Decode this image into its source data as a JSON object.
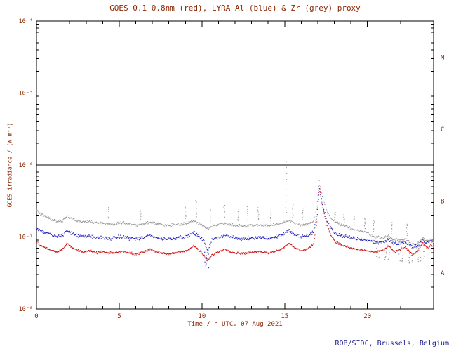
{
  "figure": {
    "credit": "ROB/SIDC, Brussels, Belgium",
    "colors": {
      "text": "#8b2500",
      "credit": "#1a1a8c",
      "frame": "#000000",
      "boundary_line": "#000000",
      "red_series": "#cc1111",
      "blue_series": "#2222bb",
      "grey_series": "#9a9a9a"
    }
  },
  "chart_data": {
    "type": "scatter",
    "title": "GOES 0.1−0.8nm (red), LYRA Al (blue) & Zr (grey) proxy",
    "xlabel": "Time / h UTC, 07 Aug 2021",
    "ylabel": "GOES irradiance / (W m⁻²)",
    "xlim": [
      0,
      24
    ],
    "ylog10_range": [
      -8,
      -4
    ],
    "x_major_ticks": [
      0,
      5,
      10,
      15,
      20
    ],
    "x_minor_step": 1,
    "y_decade_labels": [
      "10⁻⁸",
      "10⁻⁷",
      "10⁻⁶",
      "10⁻⁵",
      "10⁻⁴"
    ],
    "class_boundary_lines_log10": [
      -7,
      -6,
      -5
    ],
    "flare_class_labels": [
      {
        "label": "A",
        "band": [
          -8,
          -7
        ]
      },
      {
        "label": "B",
        "band": [
          -7,
          -6
        ]
      },
      {
        "label": "C",
        "band": [
          -6,
          -5
        ]
      },
      {
        "label": "M",
        "band": [
          -5,
          -4
        ]
      }
    ],
    "grid": false,
    "legend": "encoded in title (red/blue/grey)",
    "series": [
      {
        "name": "GOES 0.1-0.8nm",
        "color": "#cc1111",
        "keypoints": [
          [
            0,
            8.5e-08
          ],
          [
            0.3,
            7.5e-08
          ],
          [
            0.7,
            6.8e-08
          ],
          [
            1.2,
            6.2e-08
          ],
          [
            1.6,
            6.8e-08
          ],
          [
            1.85,
            8.2e-08
          ],
          [
            2.1,
            7.2e-08
          ],
          [
            2.4,
            6.6e-08
          ],
          [
            2.8,
            6.2e-08
          ],
          [
            3.2,
            6.4e-08
          ],
          [
            3.6,
            6e-08
          ],
          [
            4.0,
            6.2e-08
          ],
          [
            4.4,
            5.9e-08
          ],
          [
            4.8,
            6.1e-08
          ],
          [
            5.2,
            6.3e-08
          ],
          [
            5.6,
            6e-08
          ],
          [
            6.0,
            5.8e-08
          ],
          [
            6.4,
            6.1e-08
          ],
          [
            6.9,
            6.8e-08
          ],
          [
            7.2,
            6.2e-08
          ],
          [
            7.6,
            5.9e-08
          ],
          [
            8.0,
            5.8e-08
          ],
          [
            8.4,
            6e-08
          ],
          [
            8.8,
            6.3e-08
          ],
          [
            9.2,
            6.6e-08
          ],
          [
            9.5,
            7.6e-08
          ],
          [
            9.8,
            6.6e-08
          ],
          [
            10.1,
            5.6e-08
          ],
          [
            10.35,
            4.6e-08
          ],
          [
            10.6,
            5.6e-08
          ],
          [
            11.0,
            6.2e-08
          ],
          [
            11.4,
            6.8e-08
          ],
          [
            11.7,
            6.3e-08
          ],
          [
            12.0,
            6e-08
          ],
          [
            12.5,
            5.9e-08
          ],
          [
            13.0,
            6.1e-08
          ],
          [
            13.5,
            6.3e-08
          ],
          [
            14.0,
            6e-08
          ],
          [
            14.5,
            6.4e-08
          ],
          [
            14.9,
            7e-08
          ],
          [
            15.25,
            8.2e-08
          ],
          [
            15.6,
            7e-08
          ],
          [
            16.0,
            6.5e-08
          ],
          [
            16.4,
            6.8e-08
          ],
          [
            16.75,
            8e-08
          ],
          [
            16.95,
            1.6e-07
          ],
          [
            17.1,
            5.2e-07
          ],
          [
            17.3,
            2.6e-07
          ],
          [
            17.55,
            1.5e-07
          ],
          [
            17.8,
            1.05e-07
          ],
          [
            18.1,
            8.5e-08
          ],
          [
            18.5,
            7.6e-08
          ],
          [
            19.0,
            7e-08
          ],
          [
            19.5,
            6.6e-08
          ],
          [
            20.0,
            6.4e-08
          ],
          [
            20.5,
            6.1e-08
          ],
          [
            21.0,
            6.6e-08
          ],
          [
            21.3,
            7.6e-08
          ],
          [
            21.6,
            6.2e-08
          ],
          [
            22.0,
            6.6e-08
          ],
          [
            22.3,
            7.2e-08
          ],
          [
            22.7,
            5.7e-08
          ],
          [
            23.0,
            6.2e-08
          ],
          [
            23.35,
            8.2e-08
          ],
          [
            23.6,
            7e-08
          ],
          [
            23.85,
            7.8e-08
          ],
          [
            24,
            7.2e-08
          ]
        ]
      },
      {
        "name": "LYRA Al proxy",
        "color": "#2222bb",
        "keypoints": [
          [
            0,
            1.35e-07
          ],
          [
            0.3,
            1.2e-07
          ],
          [
            0.7,
            1.1e-07
          ],
          [
            1.2,
            1e-07
          ],
          [
            1.6,
            1.08e-07
          ],
          [
            1.85,
            1.25e-07
          ],
          [
            2.1,
            1.12e-07
          ],
          [
            2.4,
            1.05e-07
          ],
          [
            2.8,
            1e-07
          ],
          [
            3.2,
            1.02e-07
          ],
          [
            3.6,
            9.7e-08
          ],
          [
            4.0,
            9.9e-08
          ],
          [
            4.4,
            9.5e-08
          ],
          [
            4.8,
            9.8e-08
          ],
          [
            5.2,
            1e-07
          ],
          [
            5.6,
            9.7e-08
          ],
          [
            6.0,
            9.4e-08
          ],
          [
            6.4,
            9.7e-08
          ],
          [
            6.9,
            1.05e-07
          ],
          [
            7.2,
            9.9e-08
          ],
          [
            7.6,
            9.5e-08
          ],
          [
            8.0,
            9.4e-08
          ],
          [
            8.4,
            9.6e-08
          ],
          [
            8.8,
            1e-07
          ],
          [
            9.2,
            1.04e-07
          ],
          [
            9.5,
            1.15e-07
          ],
          [
            9.8,
            1.02e-07
          ],
          [
            10.1,
            8.8e-08
          ],
          [
            10.35,
            6.5e-08
          ],
          [
            10.6,
            9e-08
          ],
          [
            11.0,
            9.9e-08
          ],
          [
            11.4,
            1.06e-07
          ],
          [
            11.7,
            1e-07
          ],
          [
            12.0,
            9.6e-08
          ],
          [
            12.5,
            9.4e-08
          ],
          [
            13.0,
            9.7e-08
          ],
          [
            13.5,
            9.9e-08
          ],
          [
            14.0,
            9.6e-08
          ],
          [
            14.5,
            1e-07
          ],
          [
            14.9,
            1.08e-07
          ],
          [
            15.25,
            1.22e-07
          ],
          [
            15.6,
            1.08e-07
          ],
          [
            16.0,
            1e-07
          ],
          [
            16.4,
            1.04e-07
          ],
          [
            16.75,
            1.18e-07
          ],
          [
            16.95,
            2e-07
          ],
          [
            17.1,
            4.6e-07
          ],
          [
            17.3,
            2.6e-07
          ],
          [
            17.55,
            1.7e-07
          ],
          [
            17.8,
            1.3e-07
          ],
          [
            18.1,
            1.12e-07
          ],
          [
            18.5,
            1.03e-07
          ],
          [
            19.0,
            9.7e-08
          ],
          [
            19.5,
            9.3e-08
          ],
          [
            20.0,
            9e-08
          ],
          [
            20.5,
            8.4e-08
          ],
          [
            21.0,
            8.6e-08
          ],
          [
            21.3,
            9.4e-08
          ],
          [
            21.6,
            8e-08
          ],
          [
            22.0,
            8.2e-08
          ],
          [
            22.3,
            8.6e-08
          ],
          [
            22.7,
            7.2e-08
          ],
          [
            23.0,
            7.4e-08
          ],
          [
            23.35,
            9.2e-08
          ],
          [
            23.6,
            8.2e-08
          ],
          [
            23.85,
            8.8e-08
          ],
          [
            24,
            8.3e-08
          ]
        ]
      },
      {
        "name": "LYRA Zr proxy",
        "color": "#9a9a9a",
        "keypoints": [
          [
            0,
            2.3e-07
          ],
          [
            0.3,
            2.05e-07
          ],
          [
            0.7,
            1.85e-07
          ],
          [
            1.2,
            1.65e-07
          ],
          [
            1.6,
            1.7e-07
          ],
          [
            1.85,
            1.95e-07
          ],
          [
            2.1,
            1.8e-07
          ],
          [
            2.4,
            1.7e-07
          ],
          [
            2.8,
            1.62e-07
          ],
          [
            3.2,
            1.65e-07
          ],
          [
            3.6,
            1.55e-07
          ],
          [
            4.0,
            1.57e-07
          ],
          [
            4.4,
            1.5e-07
          ],
          [
            4.8,
            1.54e-07
          ],
          [
            5.2,
            1.58e-07
          ],
          [
            5.6,
            1.52e-07
          ],
          [
            6.0,
            1.47e-07
          ],
          [
            6.4,
            1.5e-07
          ],
          [
            6.9,
            1.6e-07
          ],
          [
            7.2,
            1.52e-07
          ],
          [
            7.6,
            1.47e-07
          ],
          [
            8.0,
            1.44e-07
          ],
          [
            8.4,
            1.47e-07
          ],
          [
            8.8,
            1.52e-07
          ],
          [
            9.2,
            1.56e-07
          ],
          [
            9.5,
            1.68e-07
          ],
          [
            9.8,
            1.54e-07
          ],
          [
            10.1,
            1.42e-07
          ],
          [
            10.35,
            1.3e-07
          ],
          [
            10.6,
            1.42e-07
          ],
          [
            11.0,
            1.5e-07
          ],
          [
            11.4,
            1.57e-07
          ],
          [
            11.7,
            1.5e-07
          ],
          [
            12.0,
            1.45e-07
          ],
          [
            12.5,
            1.42e-07
          ],
          [
            13.0,
            1.45e-07
          ],
          [
            13.5,
            1.47e-07
          ],
          [
            14.0,
            1.43e-07
          ],
          [
            14.5,
            1.48e-07
          ],
          [
            14.9,
            1.56e-07
          ],
          [
            15.25,
            1.7e-07
          ],
          [
            15.6,
            1.55e-07
          ],
          [
            16.0,
            1.46e-07
          ],
          [
            16.4,
            1.5e-07
          ],
          [
            16.75,
            1.65e-07
          ],
          [
            16.95,
            2.6e-07
          ],
          [
            17.1,
            6e-07
          ],
          [
            17.3,
            3.4e-07
          ],
          [
            17.55,
            2.3e-07
          ],
          [
            17.8,
            1.8e-07
          ],
          [
            18.1,
            1.58e-07
          ],
          [
            18.5,
            1.44e-07
          ],
          [
            19.0,
            1.32e-07
          ],
          [
            19.5,
            1.22e-07
          ],
          [
            20.0,
            1.14e-07
          ],
          [
            20.5,
            1e-07
          ],
          [
            21.0,
            9.7e-08
          ],
          [
            21.3,
            1.05e-07
          ],
          [
            21.6,
            9e-08
          ],
          [
            22.0,
            9e-08
          ],
          [
            22.3,
            9.4e-08
          ],
          [
            22.7,
            7.9e-08
          ],
          [
            23.0,
            8e-08
          ],
          [
            23.35,
            9.8e-08
          ],
          [
            23.6,
            8.8e-08
          ],
          [
            23.85,
            9.4e-08
          ],
          [
            24,
            8.8e-08
          ]
        ]
      }
    ],
    "artifact_spikes": [
      {
        "x": 4.35,
        "peak": 2.6e-07
      },
      {
        "x": 6.3,
        "peak": 2.4e-07
      },
      {
        "x": 9.0,
        "peak": 2.6e-07
      },
      {
        "x": 9.65,
        "peak": 3.2e-07
      },
      {
        "x": 10.5,
        "peak": 2.5e-07
      },
      {
        "x": 11.35,
        "peak": 2.8e-07
      },
      {
        "x": 12.2,
        "peak": 2.4e-07
      },
      {
        "x": 12.75,
        "peak": 2.6e-07
      },
      {
        "x": 13.4,
        "peak": 2.5e-07
      },
      {
        "x": 14.15,
        "peak": 2.4e-07
      },
      {
        "x": 15.1,
        "peak": 1.1e-06
      },
      {
        "x": 15.5,
        "peak": 2.8e-07
      },
      {
        "x": 16.1,
        "peak": 2.5e-07
      },
      {
        "x": 18.05,
        "peak": 2.2e-07
      },
      {
        "x": 18.6,
        "peak": 2e-07
      },
      {
        "x": 19.2,
        "peak": 1.9e-07
      },
      {
        "x": 19.85,
        "peak": 1.8e-07
      },
      {
        "x": 20.4,
        "peak": 1.7e-07
      },
      {
        "x": 21.5,
        "peak": 1.6e-07
      },
      {
        "x": 22.4,
        "peak": 1.5e-07
      }
    ],
    "artifact_dips": [
      {
        "x": 10.3,
        "min": 3.5e-08,
        "series": 1
      },
      {
        "x": 20.7,
        "min": 5e-08,
        "series": 2
      },
      {
        "x": 21.2,
        "min": 4.5e-08,
        "series": 2
      },
      {
        "x": 22.0,
        "min": 4.5e-08,
        "series": 2
      },
      {
        "x": 22.6,
        "min": 4e-08,
        "series": 2
      },
      {
        "x": 23.1,
        "min": 4.5e-08,
        "series": 2
      },
      {
        "x": 23.35,
        "min": 5e-08,
        "series": 2
      }
    ]
  }
}
